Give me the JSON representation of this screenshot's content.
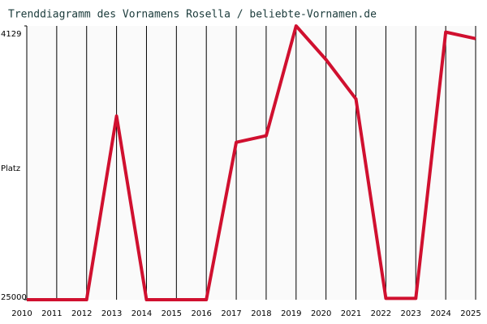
{
  "chart_data": {
    "type": "line",
    "title": "Trenddiagramm des Vornamens Rosella / beliebte-Vornamen.de",
    "y_label": "Platz",
    "x": [
      2010,
      2011,
      2012,
      2013,
      2014,
      2015,
      2016,
      2017,
      2018,
      2019,
      2020,
      2021,
      2022,
      2023,
      2024,
      2025
    ],
    "series": [
      {
        "color": "#d0102f",
        "values": [
          25000,
          25000,
          25000,
          11000,
          25000,
          25000,
          25000,
          13000,
          12500,
          4129,
          6700,
          9700,
          24900,
          24900,
          4600,
          5100
        ]
      }
    ],
    "xlim": [
      2010,
      2025
    ],
    "xticks": [
      2010,
      2011,
      2012,
      2013,
      2014,
      2015,
      2016,
      2017,
      2018,
      2019,
      2020,
      2021,
      2022,
      2023,
      2024,
      2025
    ],
    "ylim": [
      25000,
      4129
    ],
    "yticks": [
      4129,
      25000
    ],
    "grid": true
  }
}
